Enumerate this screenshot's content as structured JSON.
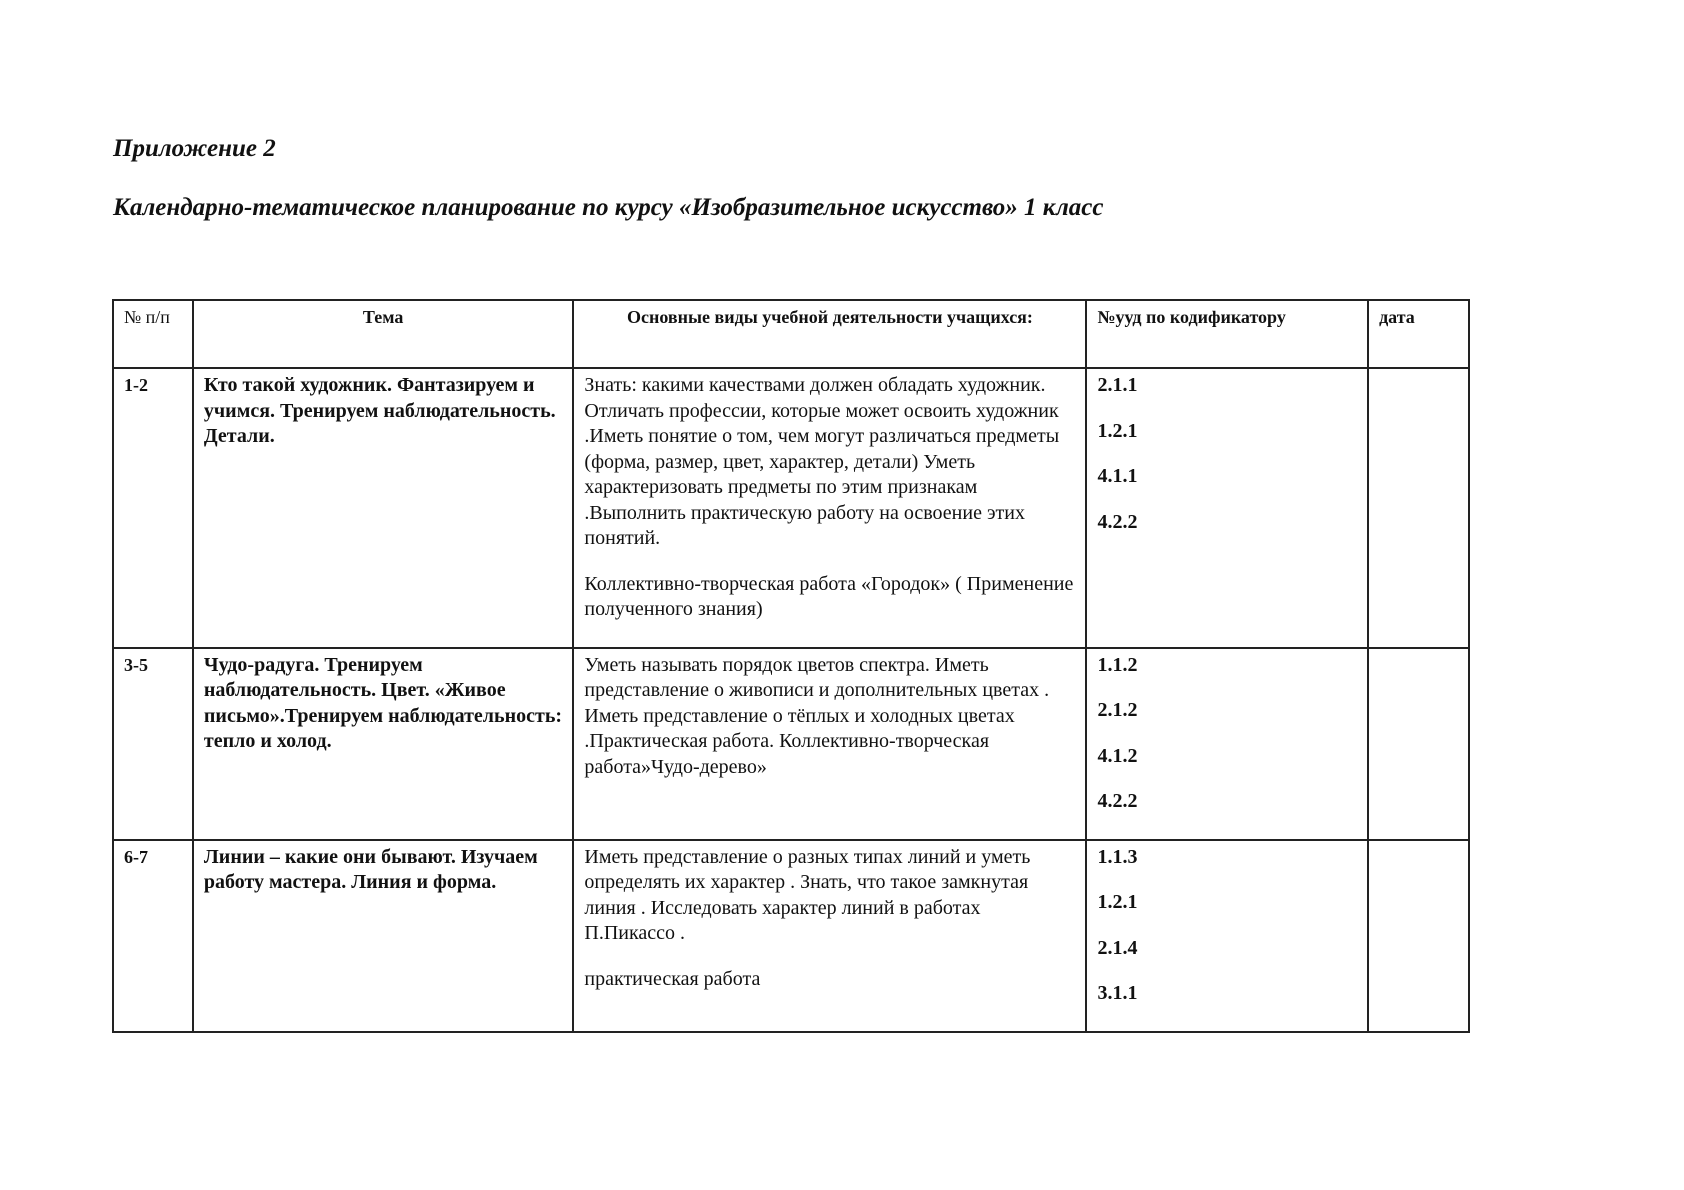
{
  "heading": "Приложение 2",
  "title": "Календарно-тематическое планирование по курсу «Изобразительное искусство» 1 класс",
  "table": {
    "headers": [
      "№ п/п",
      "Тема",
      "Основные виды учебной деятельности учащихся:",
      "№ууд по кодификатору",
      "дата"
    ],
    "rows": [
      {
        "num": "1-2",
        "topic": "Кто такой художник. Фантазируем и учимся. Тренируем наблюдательность. Детали.",
        "activity": [
          "Знать: какими качествами должен обладать художник. Отличать профессии, которые может освоить художник .Иметь понятие о том, чем могут различаться предметы (форма, размер, цвет, характер, детали) Уметь характеризовать предметы по этим признакам .Выполнить практическую работу на освоение этих понятий.",
          "Коллективно-творческая работа «Городок»             ( Применение полученного знания)"
        ],
        "codes": [
          "2.1.1",
          "1.2.1",
          "4.1.1",
          "4.2.2"
        ],
        "date": ""
      },
      {
        "num": "3-5",
        "topic": "Чудо-радуга. Тренируем наблюдательность. Цвет. «Живое письмо».Тренируем наблюдательность: тепло и холод.",
        "activity": [
          "Уметь называть порядок цветов спектра. Иметь представление о живописи и дополнительных цветах . Иметь  представление о тёплых и холодных цветах .Практическая работа. Коллективно-творческая работа»Чудо-дерево»"
        ],
        "codes": [
          "1.1.2",
          "2.1.2",
          "4.1.2",
          "4.2.2"
        ],
        "date": ""
      },
      {
        "num": "6-7",
        "topic": "Линии – какие они бывают. Изучаем работу мастера. Линия и форма.",
        "activity": [
          " Иметь представление о разных типах линий  и уметь определять их характер . Знать, что такое замкнутая линия . Исследовать характер линий в работах П.Пикассо .",
          "практическая работа"
        ],
        "codes": [
          "1.1.3",
          "1.2.1",
          "2.1.4",
          "3.1.1"
        ],
        "date": ""
      }
    ]
  }
}
